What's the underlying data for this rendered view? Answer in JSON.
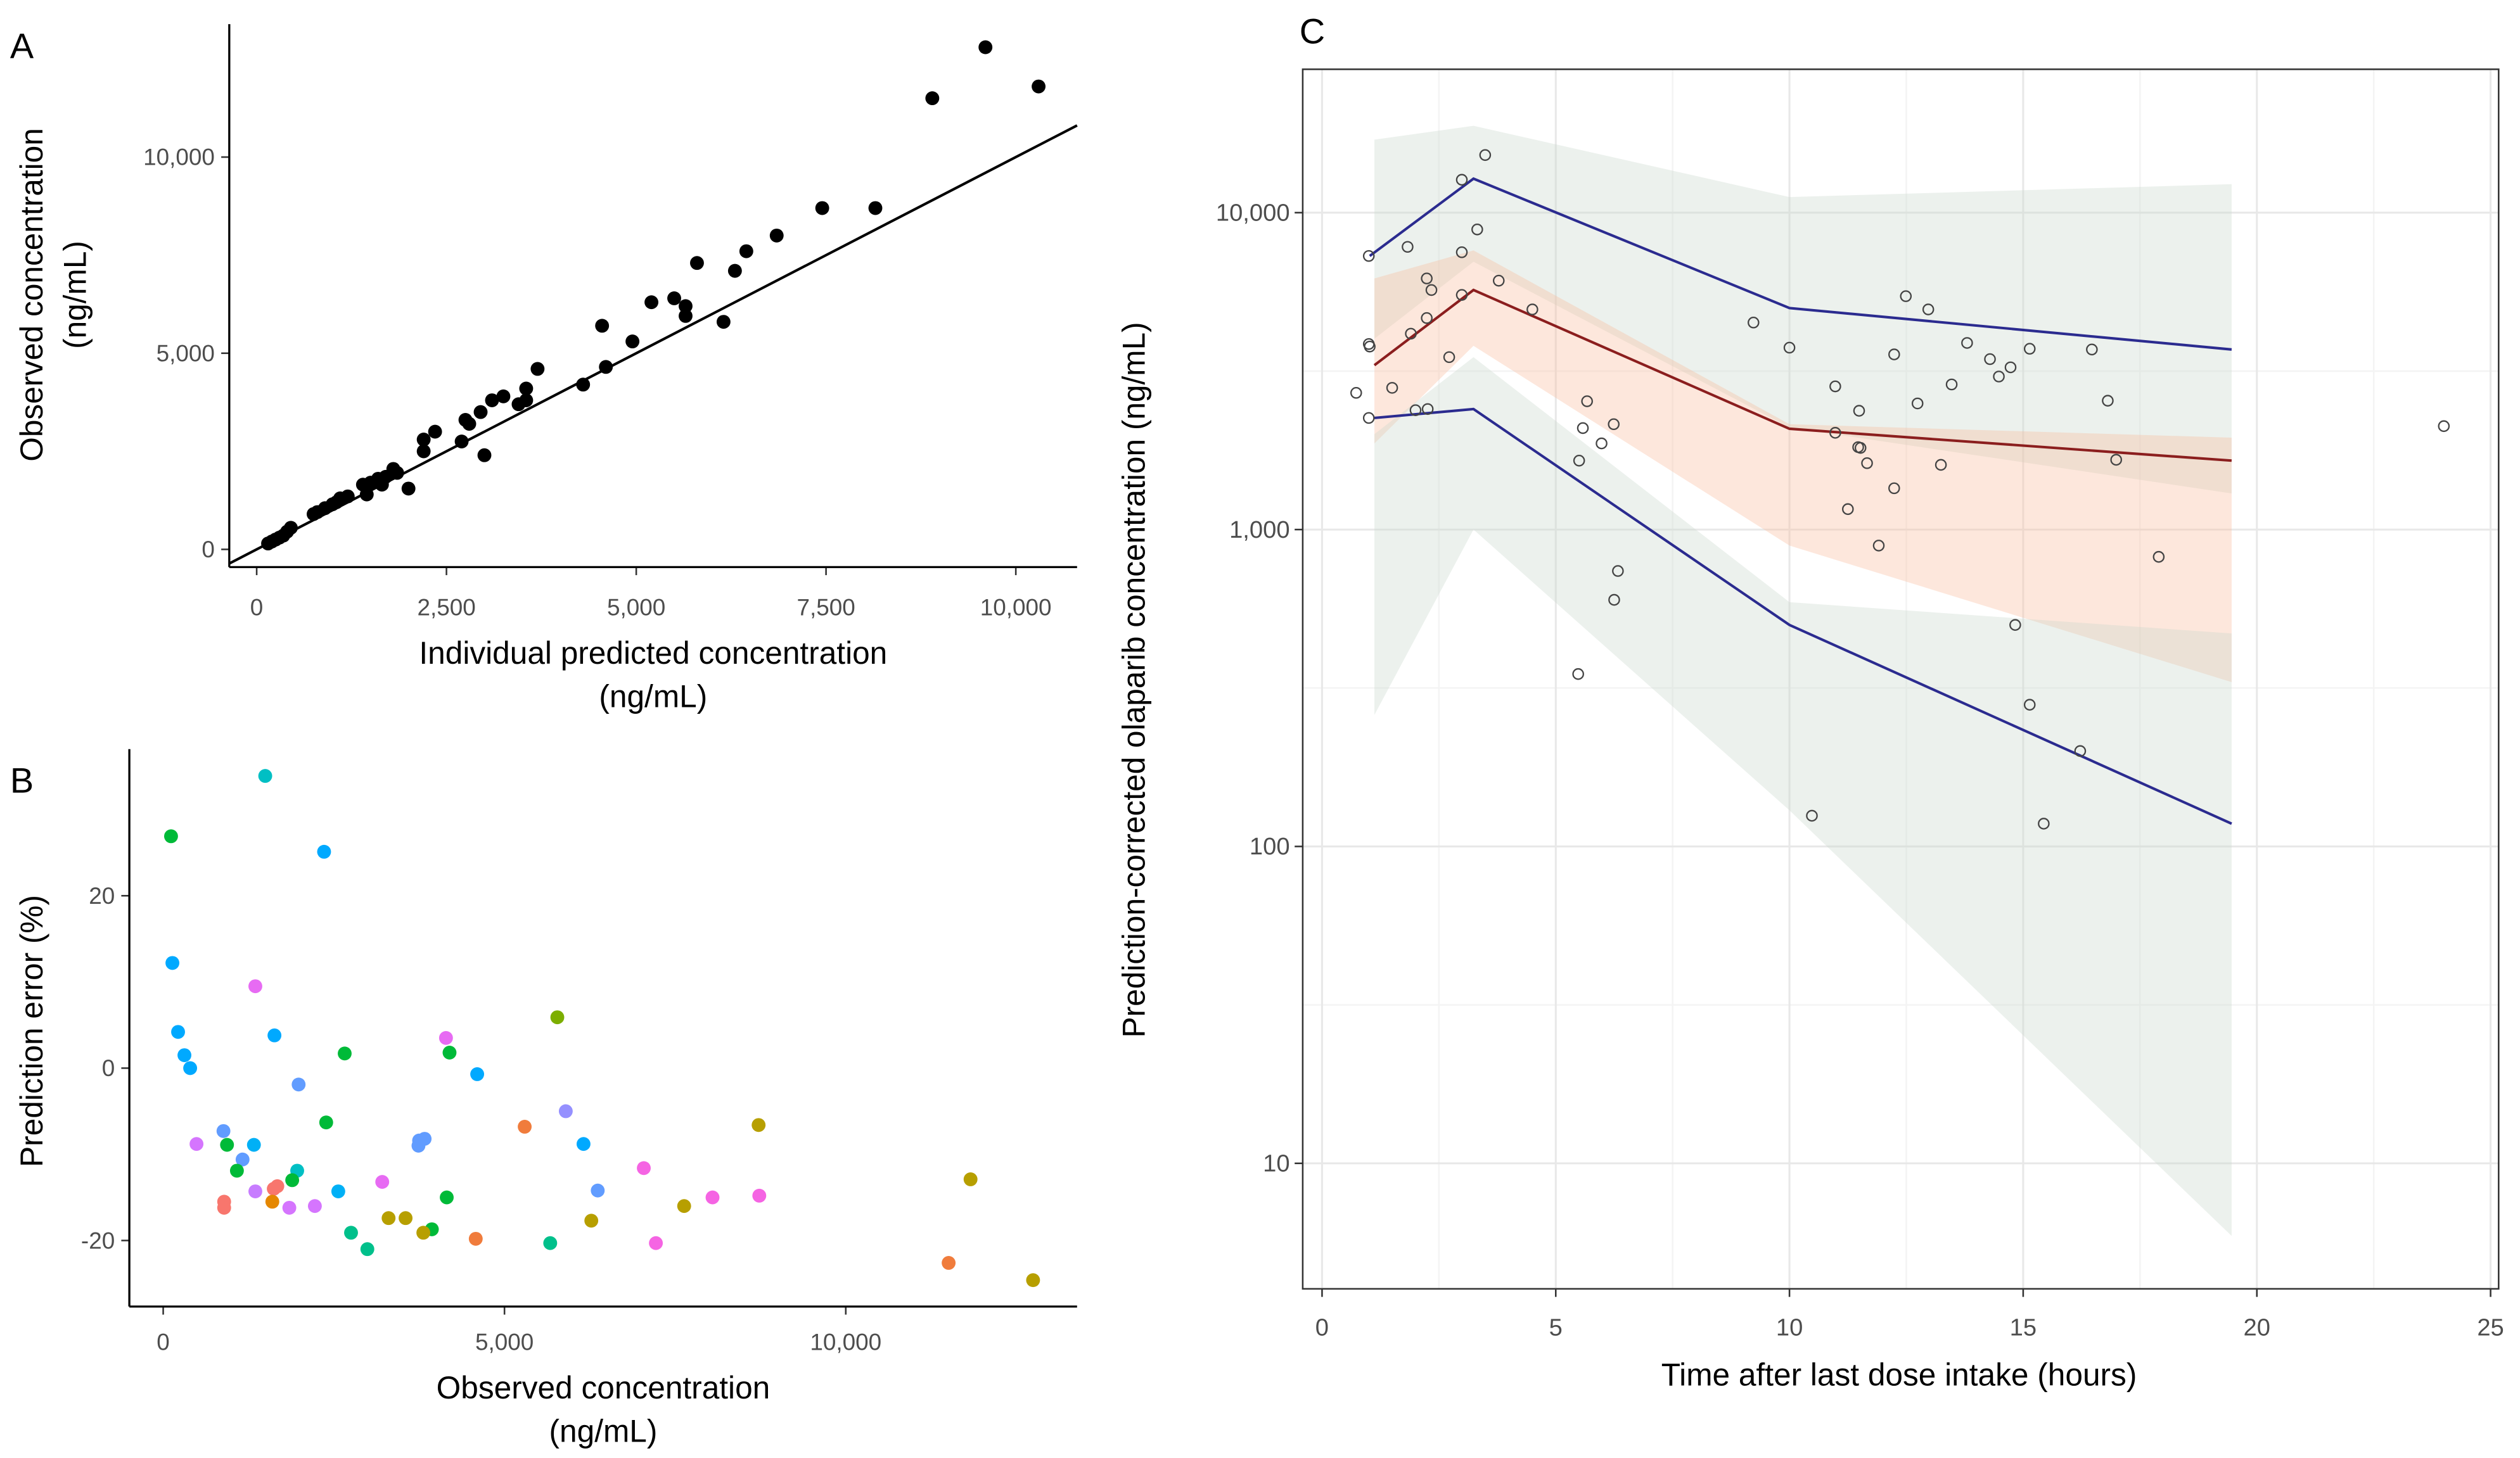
{
  "chart_data": [
    {
      "panel": "A",
      "type": "scatter",
      "xlabel": "Individual predicted concentration",
      "xlabel_unit": "(ng/mL)",
      "ylabel": "Observed concentration",
      "ylabel_unit": "(ng/mL)",
      "xlim": [
        -360,
        10807
      ],
      "ylim": [
        -450,
        13500
      ],
      "xticks": [
        {
          "v": 0,
          "label": "0"
        },
        {
          "v": 2500,
          "label": "2,500"
        },
        {
          "v": 5000,
          "label": "5,000"
        },
        {
          "v": 7500,
          "label": "7,500"
        },
        {
          "v": 10000,
          "label": "10,000"
        }
      ],
      "yticks": [
        {
          "v": 0,
          "label": "0"
        },
        {
          "v": 5000,
          "label": "5,000"
        },
        {
          "v": 10000,
          "label": "10,000"
        }
      ],
      "reference_line": "identity (y = x)",
      "point_color": "#000000",
      "points": [
        [
          150,
          150
        ],
        [
          200,
          200
        ],
        [
          250,
          250
        ],
        [
          300,
          300
        ],
        [
          350,
          350
        ],
        [
          400,
          450
        ],
        [
          450,
          550
        ],
        [
          750,
          900
        ],
        [
          800,
          950
        ],
        [
          900,
          1050
        ],
        [
          1000,
          1150
        ],
        [
          1050,
          1200
        ],
        [
          1100,
          1300
        ],
        [
          1200,
          1350
        ],
        [
          1400,
          1650
        ],
        [
          1450,
          1400
        ],
        [
          1500,
          1700
        ],
        [
          1600,
          1800
        ],
        [
          1650,
          1650
        ],
        [
          1700,
          1850
        ],
        [
          1800,
          2050
        ],
        [
          1850,
          1950
        ],
        [
          2000,
          1550
        ],
        [
          2200,
          2500
        ],
        [
          2200,
          2800
        ],
        [
          2350,
          3000
        ],
        [
          2700,
          2750
        ],
        [
          2750,
          3300
        ],
        [
          2800,
          3200
        ],
        [
          2950,
          3500
        ],
        [
          3000,
          2400
        ],
        [
          3100,
          3800
        ],
        [
          3250,
          3900
        ],
        [
          3450,
          3700
        ],
        [
          3550,
          3800
        ],
        [
          3550,
          4100
        ],
        [
          3700,
          4600
        ],
        [
          4300,
          4200
        ],
        [
          4550,
          5700
        ],
        [
          4600,
          4650
        ],
        [
          4950,
          5300
        ],
        [
          5200,
          6300
        ],
        [
          5500,
          6400
        ],
        [
          5650,
          6200
        ],
        [
          5650,
          5950
        ],
        [
          5800,
          7300
        ],
        [
          6150,
          5800
        ],
        [
          6300,
          7100
        ],
        [
          6450,
          7600
        ],
        [
          6850,
          8000
        ],
        [
          7450,
          8700
        ],
        [
          8150,
          8700
        ],
        [
          8900,
          11500
        ],
        [
          9600,
          12800
        ],
        [
          10300,
          11800
        ]
      ]
    },
    {
      "panel": "B",
      "type": "scatter",
      "xlabel": "Observed concentration",
      "xlabel_unit": "(ng/mL)",
      "ylabel": "Prediction error (%)",
      "xticks": [
        {
          "v": 0,
          "label": "0"
        },
        {
          "v": 5000,
          "label": "5,000"
        },
        {
          "v": 10000,
          "label": "10,000"
        }
      ],
      "yticks": [
        {
          "v": -20,
          "label": "-20"
        },
        {
          "v": 0,
          "label": "0"
        },
        {
          "v": 20,
          "label": "20"
        }
      ],
      "points": [
        [
          115,
          26.9,
          "#00BA38"
        ],
        [
          1495,
          33.9,
          "#00BFC4"
        ],
        [
          2357,
          25.1,
          "#00A9FF"
        ],
        [
          135,
          12.2,
          "#00A9FF"
        ],
        [
          1350,
          9.5,
          "#E76BF3"
        ],
        [
          218,
          4.2,
          "#00A9FF"
        ],
        [
          1630,
          3.8,
          "#00A9FF"
        ],
        [
          311,
          1.5,
          "#00A9FF"
        ],
        [
          395,
          0,
          "#00A9FF"
        ],
        [
          2659,
          1.7,
          "#00BA38"
        ],
        [
          4195,
          1.8,
          "#00BA38"
        ],
        [
          4143,
          3.5,
          "#E76BF3"
        ],
        [
          5774,
          5.9,
          "#7CAE00"
        ],
        [
          4600,
          -0.7,
          "#00A9FF"
        ],
        [
          1984,
          -1.9,
          "#619CFF"
        ],
        [
          2388,
          -6.3,
          "#00BA38"
        ],
        [
          5296,
          -6.8,
          "#F07C3C"
        ],
        [
          8723,
          -6.6,
          "#B79F00"
        ],
        [
          5898,
          -5.0,
          "#9590FF"
        ],
        [
          883,
          -7.3,
          "#619CFF"
        ],
        [
          488,
          -8.8,
          "#D575FE"
        ],
        [
          935,
          -8.9,
          "#00BA38"
        ],
        [
          1329,
          -8.9,
          "#00B0F6"
        ],
        [
          1163,
          -10.6,
          "#619CFF"
        ],
        [
          1080,
          -11.9,
          "#00BA38"
        ],
        [
          1963,
          -11.9,
          "#00BFC4"
        ],
        [
          1890,
          -13.0,
          "#00BA38"
        ],
        [
          3749,
          -8.4,
          "#619CFF"
        ],
        [
          3830,
          -8.2,
          "#619CFF"
        ],
        [
          3740,
          -9.0,
          "#619CFF"
        ],
        [
          6158,
          -8.8,
          "#00A9FF"
        ],
        [
          7041,
          -11.6,
          "#F564E3"
        ],
        [
          3209,
          -13.2,
          "#E76BF3"
        ],
        [
          1672,
          -13.7,
          "#F8766D"
        ],
        [
          1620,
          -14.0,
          "#F8766D"
        ],
        [
          1350,
          -14.3,
          "#C77CFF"
        ],
        [
          2565,
          -14.3,
          "#00B0F6"
        ],
        [
          6366,
          -14.2,
          "#619CFF"
        ],
        [
          4154,
          -15.0,
          "#00BA38"
        ],
        [
          1599,
          -15.5,
          "#E58700"
        ],
        [
          893,
          -15.5,
          "#F8766D"
        ],
        [
          893,
          -16.2,
          "#F8766D"
        ],
        [
          1848,
          -16.2,
          "#D575FE"
        ],
        [
          2222,
          -16.0,
          "#D575FE"
        ],
        [
          8048,
          -15.0,
          "#F564E3"
        ],
        [
          8733,
          -14.8,
          "#F564E3"
        ],
        [
          7632,
          -16.0,
          "#B79F00"
        ],
        [
          11828,
          -12.9,
          "#B79F00"
        ],
        [
          3302,
          -17.4,
          "#B79F00"
        ],
        [
          3551,
          -17.4,
          "#B79F00"
        ],
        [
          6272,
          -17.7,
          "#B79F00"
        ],
        [
          3936,
          -18.7,
          "#00BA38"
        ],
        [
          3811,
          -19.1,
          "#B79F00"
        ],
        [
          2752,
          -19.1,
          "#00C08B"
        ],
        [
          2991,
          -21.0,
          "#00C08B"
        ],
        [
          4579,
          -19.8,
          "#F07C3C"
        ],
        [
          5670,
          -20.3,
          "#00C08B"
        ],
        [
          7218,
          -20.3,
          "#F564E3"
        ],
        [
          11507,
          -22.6,
          "#F07C3C"
        ],
        [
          12744,
          -24.6,
          "#B79F00"
        ]
      ]
    },
    {
      "panel": "C",
      "type": "line",
      "title": "",
      "xlabel": "Time after last dose intake (hours)",
      "ylabel": "Prediction-corrected olaparib concentration (ng/mL)",
      "yscale": "log",
      "xlim": [
        -0.4,
        25.2
      ],
      "ylim": [
        4,
        28000
      ],
      "xticks": [
        {
          "v": 0,
          "label": "0"
        },
        {
          "v": 5,
          "label": "5"
        },
        {
          "v": 10,
          "label": "10"
        },
        {
          "v": 15,
          "label": "15"
        },
        {
          "v": 20,
          "label": "20"
        },
        {
          "v": 25,
          "label": "25"
        }
      ],
      "yticks": [
        {
          "v": 10,
          "label": "10"
        },
        {
          "v": 100,
          "label": "100"
        },
        {
          "v": 1000,
          "label": "1,000"
        },
        {
          "v": 10000,
          "label": "10,000"
        }
      ],
      "grid": true,
      "bands": [
        {
          "name": "upper-percentile-ci",
          "color": "#c9d6cc",
          "t": [
            1.12,
            3.24,
            10,
            19.46
          ],
          "lower": [
            4000,
            7000,
            2100,
            1300
          ],
          "upper": [
            17000,
            18800,
            11200,
            12300
          ]
        },
        {
          "name": "median-ci",
          "color": "#f9b99c",
          "t": [
            1.12,
            3.24,
            10,
            19.46
          ],
          "lower": [
            1870,
            3800,
            890,
            330
          ],
          "upper": [
            6200,
            7600,
            2150,
            1950
          ]
        },
        {
          "name": "lower-percentile-ci",
          "color": "#c9d6cc",
          "t": [
            1.12,
            3.24,
            10,
            19.46
          ],
          "lower": [
            260,
            1000,
            130,
            5.9
          ],
          "upper": [
            2000,
            3500,
            590,
            470
          ]
        }
      ],
      "series": [
        {
          "name": "observed-95th-percentile",
          "color": "#2b2b8f",
          "t": [
            1.02,
            3.24,
            10,
            19.46
          ],
          "values": [
            7300,
            12800,
            5000,
            3700
          ]
        },
        {
          "name": "observed-median",
          "color": "#8b1e1e",
          "t": [
            1.12,
            3.24,
            10,
            19.46
          ],
          "values": [
            3300,
            5700,
            2080,
            1650
          ]
        },
        {
          "name": "observed-5th-percentile",
          "color": "#2b2b8f",
          "t": [
            1.12,
            3.24,
            10,
            19.46
          ],
          "values": [
            2250,
            2400,
            500,
            118
          ]
        }
      ],
      "points": [
        [
          0.73,
          2700
        ],
        [
          1.0,
          7300
        ],
        [
          1.0,
          3850
        ],
        [
          1.02,
          3780
        ],
        [
          1.0,
          2250
        ],
        [
          1.5,
          2800
        ],
        [
          1.83,
          7800
        ],
        [
          1.9,
          4150
        ],
        [
          2.0,
          2380
        ],
        [
          2.24,
          6200
        ],
        [
          2.34,
          5700
        ],
        [
          2.24,
          4650
        ],
        [
          2.26,
          2400
        ],
        [
          2.72,
          3500
        ],
        [
          2.99,
          12700
        ],
        [
          2.99,
          7500
        ],
        [
          2.99,
          5500
        ],
        [
          3.32,
          8850
        ],
        [
          3.49,
          15200
        ],
        [
          3.78,
          6100
        ],
        [
          4.5,
          4950
        ],
        [
          5.5,
          1650
        ],
        [
          5.58,
          2090
        ],
        [
          5.67,
          2540
        ],
        [
          5.98,
          1870
        ],
        [
          6.24,
          2150
        ],
        [
          6.25,
          600
        ],
        [
          6.33,
          740
        ],
        [
          5.48,
          350
        ],
        [
          9.23,
          4500
        ],
        [
          10.0,
          3750
        ],
        [
          10.48,
          125
        ],
        [
          10.98,
          2830
        ],
        [
          10.98,
          2020
        ],
        [
          11.25,
          1160
        ],
        [
          11.49,
          2370
        ],
        [
          11.47,
          1820
        ],
        [
          11.52,
          1810
        ],
        [
          11.66,
          1620
        ],
        [
          11.91,
          890
        ],
        [
          12.24,
          3570
        ],
        [
          12.24,
          1350
        ],
        [
          12.49,
          5450
        ],
        [
          12.74,
          2500
        ],
        [
          12.97,
          4950
        ],
        [
          13.24,
          1600
        ],
        [
          13.47,
          2870
        ],
        [
          13.8,
          3880
        ],
        [
          14.29,
          3450
        ],
        [
          14.48,
          3040
        ],
        [
          14.73,
          3250
        ],
        [
          14.83,
          500
        ],
        [
          15.14,
          3720
        ],
        [
          15.14,
          280
        ],
        [
          15.44,
          118
        ],
        [
          16.22,
          200
        ],
        [
          16.47,
          3700
        ],
        [
          16.81,
          2550
        ],
        [
          16.99,
          1660
        ],
        [
          17.9,
          820
        ],
        [
          24.0,
          2120
        ]
      ]
    }
  ],
  "labels": {
    "panel_a": "A",
    "panel_b": "B",
    "panel_c": "C"
  }
}
